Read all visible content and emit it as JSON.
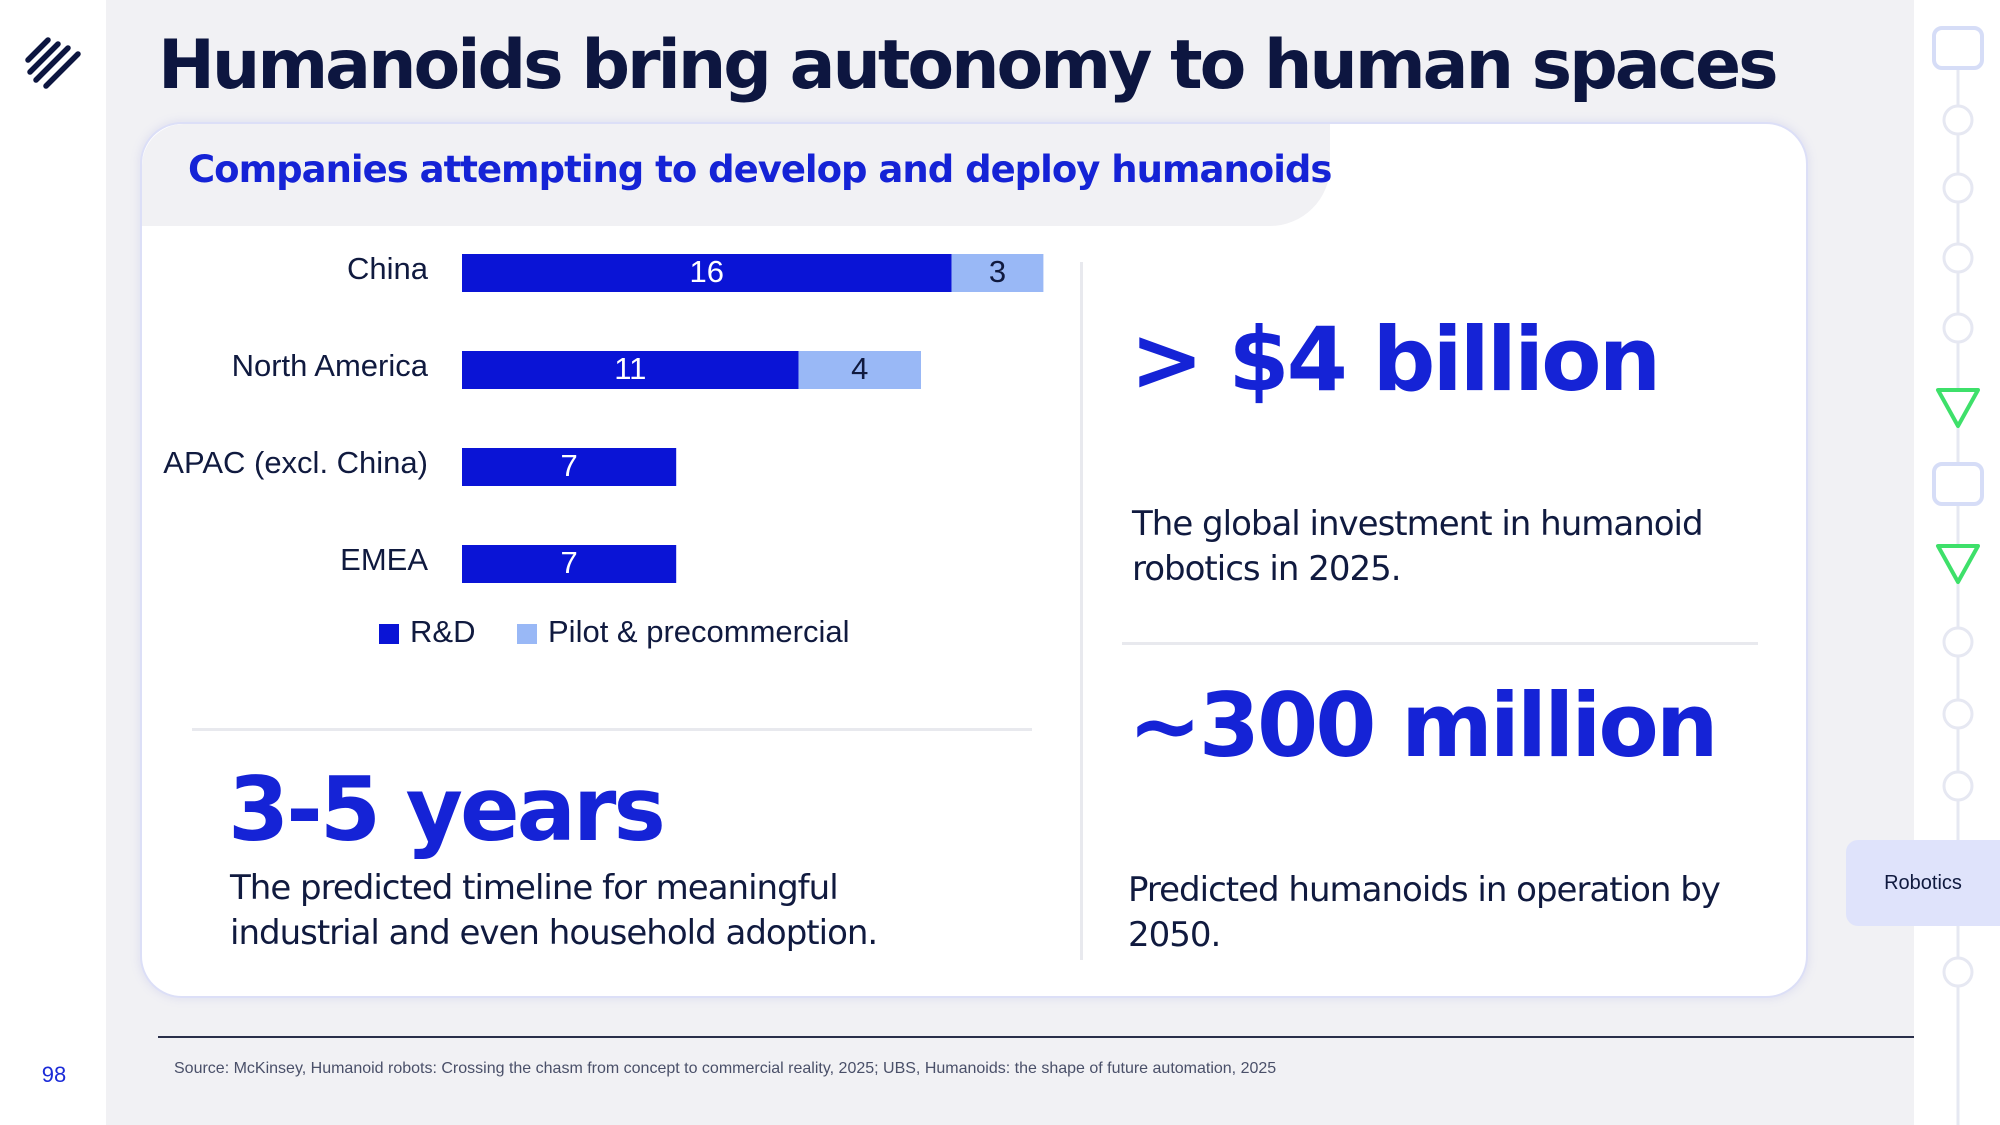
{
  "page": {
    "title": "Humanoids bring autonomy to human spaces",
    "page_number": "98",
    "section_tab": "Robotics",
    "source_note": "Source: McKinsey, Humanoid robots: Crossing the chasm from concept to commercial reality, 2025; UBS, Humanoids: the shape of future automation, 2025"
  },
  "card": {
    "subtitle": "Companies attempting to develop and deploy humanoids"
  },
  "stats": {
    "years": {
      "value": "3-5 years",
      "desc": "The predicted timeline for meaningful industrial and even household adoption."
    },
    "investment": {
      "value": "> $4 billion",
      "desc": "The global investment in humanoid robotics in 2025."
    },
    "humanoids": {
      "value": "~300 million",
      "desc": "Predicted humanoids in operation by 2050."
    }
  },
  "colors": {
    "accent": "#1523d6",
    "rd": "#0a14d6",
    "pilot": "#99b8f6",
    "progress_mark": "#3ee06a"
  },
  "icons": {
    "logo": "stacked-diagonal-lines-logo",
    "progress_marks": [
      "rounded-square-icon",
      "circle-icon",
      "circle-icon",
      "circle-icon",
      "circle-icon",
      "triangle-down-icon",
      "rounded-square-icon",
      "triangle-down-icon",
      "circle-icon",
      "circle-icon",
      "circle-icon",
      "circle-icon"
    ]
  },
  "chart_data": {
    "type": "bar",
    "orientation": "horizontal",
    "stacked": true,
    "categories": [
      "China",
      "North America",
      "APAC (excl. China)",
      "EMEA"
    ],
    "series": [
      {
        "name": "R&D",
        "values": [
          16,
          11,
          7,
          7
        ]
      },
      {
        "name": "Pilot & precommercial",
        "values": [
          3,
          4,
          0,
          0
        ]
      }
    ],
    "title": "Companies attempting to develop and deploy humanoids",
    "xlabel": "",
    "ylabel": "",
    "grid": false,
    "legend": "bottom"
  }
}
